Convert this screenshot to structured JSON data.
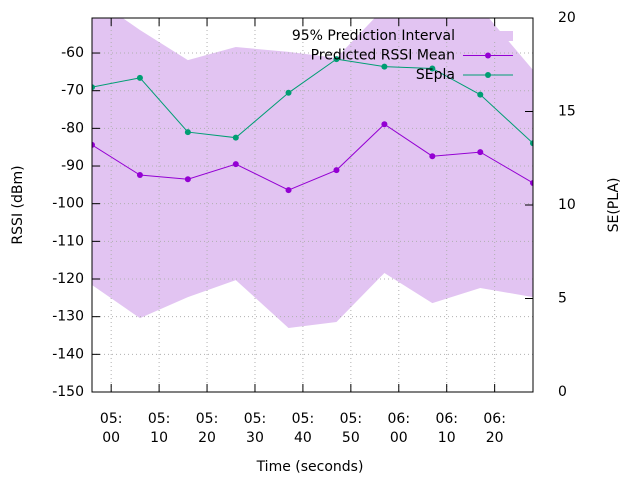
{
  "chart_data": {
    "type": "line",
    "x_label": "Time (seconds)",
    "y_label": "RSSI (dBm)",
    "y2_label": "SE(PLA)",
    "x": [
      296,
      306,
      316,
      326,
      337,
      347,
      357,
      367,
      377,
      388
    ],
    "xlim": [
      296,
      388
    ],
    "xticks": [
      {
        "value": 300,
        "label": "05:\n00"
      },
      {
        "value": 310,
        "label": "05:\n10"
      },
      {
        "value": 320,
        "label": "05:\n20"
      },
      {
        "value": 330,
        "label": "05:\n30"
      },
      {
        "value": 340,
        "label": "05:\n40"
      },
      {
        "value": 350,
        "label": "05:\n50"
      },
      {
        "value": 360,
        "label": "06:\n00"
      },
      {
        "value": 370,
        "label": "06:\n10"
      },
      {
        "value": 380,
        "label": "06:\n20"
      }
    ],
    "ylim": [
      -150,
      -50.7
    ],
    "yticks": [
      -150,
      -140,
      -130,
      -120,
      -110,
      -100,
      -90,
      -80,
      -70,
      -60
    ],
    "y2lim": [
      0,
      20
    ],
    "y2ticks": [
      0,
      5,
      10,
      15,
      20
    ],
    "grid": true,
    "legend": "top-right",
    "series": [
      {
        "name": "95% Prediction Interval",
        "type": "band",
        "color": "#e2c4f2",
        "upper": [
          -45,
          -53.9,
          -61.9,
          -58.4,
          -59.7,
          -61.3,
          -48,
          -46,
          -48,
          -64.5
        ],
        "lower": [
          -121.6,
          -130.4,
          -124.8,
          -120.3,
          -133,
          -131.4,
          -118.4,
          -126.4,
          -122.4,
          -124.8
        ]
      },
      {
        "name": "Predicted RSSI Mean",
        "type": "line",
        "color": "#9400d3",
        "values": [
          -84.4,
          -92.4,
          -93.5,
          -89.5,
          -96.4,
          -91.1,
          -78.9,
          -87.4,
          -86.3,
          -94.5
        ]
      },
      {
        "name": "SEpla",
        "type": "line",
        "color": "#009e73",
        "axis": "y2",
        "values": [
          16.3,
          16.8,
          13.9,
          13.6,
          16.0,
          17.8,
          17.4,
          17.3,
          15.9,
          13.3
        ]
      }
    ]
  }
}
